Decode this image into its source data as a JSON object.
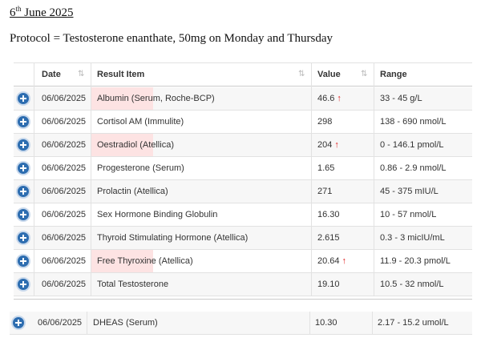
{
  "heading": {
    "day": "6",
    "suffix": "th",
    "rest": " June 2025"
  },
  "protocol": "Protocol = Testosterone enanthate, 50mg on Monday and Thursday",
  "table": {
    "columns": [
      "Date",
      "Result Item",
      "Value",
      "Range"
    ],
    "rows": [
      {
        "date": "06/06/2025",
        "item": "Albumin (Serum, Roche-BCP)",
        "value": "46.6",
        "range": "33 - 45 g/L",
        "high": true
      },
      {
        "date": "06/06/2025",
        "item": "Cortisol AM (Immulite)",
        "value": "298",
        "range": "138 - 690 nmol/L",
        "high": false
      },
      {
        "date": "06/06/2025",
        "item": "Oestradiol (Atellica)",
        "value": "204",
        "range": "0 - 146.1 pmol/L",
        "high": true
      },
      {
        "date": "06/06/2025",
        "item": "Progesterone (Serum)",
        "value": "1.65",
        "range": "0.86 - 2.9 nmol/L",
        "high": false
      },
      {
        "date": "06/06/2025",
        "item": "Prolactin (Atellica)",
        "value": "271",
        "range": "45 - 375 mIU/L",
        "high": false
      },
      {
        "date": "06/06/2025",
        "item": "Sex Hormone Binding Globulin",
        "value": "16.30",
        "range": "10 - 57 nmol/L",
        "high": false
      },
      {
        "date": "06/06/2025",
        "item": "Thyroid Stimulating Hormone (Atellica)",
        "value": "2.615",
        "range": "0.3 - 3 micIU/mL",
        "high": false
      },
      {
        "date": "06/06/2025",
        "item": "Free Thyroxine (Atellica)",
        "value": "20.64",
        "range": "11.9 - 20.3 pmol/L",
        "high": true
      },
      {
        "date": "06/06/2025",
        "item": "Total Testosterone",
        "value": "19.10",
        "range": "10.5 - 32 nmol/L",
        "high": false
      }
    ]
  },
  "extra_row": {
    "date": "06/06/2025",
    "item": "DHEAS (Serum)",
    "value": "10.30",
    "range": "2.17 - 15.2 umol/L",
    "high": false
  }
}
